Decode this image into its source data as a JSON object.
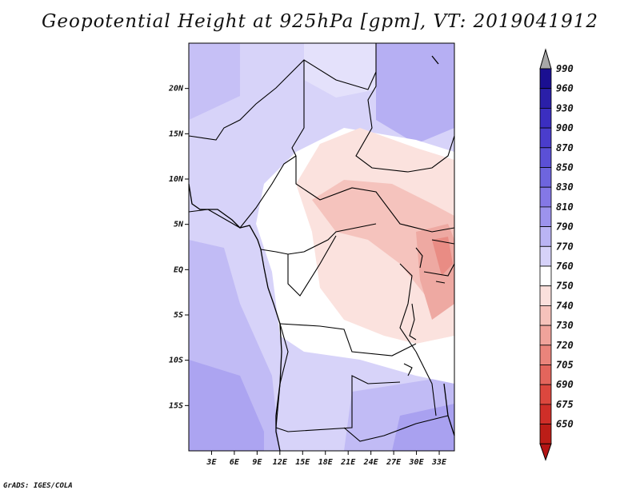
{
  "title": "Geopotential Height at 925hPa [gpm], VT: 2019041912",
  "credit": "GrADS: IGES/COLA",
  "map": {
    "lon_range": [
      0,
      35
    ],
    "lat_range": [
      -20,
      25
    ],
    "lat_ticks": [
      {
        "label": "20N",
        "lat": 20
      },
      {
        "label": "15N",
        "lat": 15
      },
      {
        "label": "10N",
        "lat": 10
      },
      {
        "label": "5N",
        "lat": 5
      },
      {
        "label": "EQ",
        "lat": 0
      },
      {
        "label": "5S",
        "lat": -5
      },
      {
        "label": "10S",
        "lat": -10
      },
      {
        "label": "15S",
        "lat": -15
      }
    ],
    "lon_ticks": [
      {
        "label": "3E",
        "lon": 3
      },
      {
        "label": "6E",
        "lon": 6
      },
      {
        "label": "9E",
        "lon": 9
      },
      {
        "label": "12E",
        "lon": 12
      },
      {
        "label": "15E",
        "lon": 15
      },
      {
        "label": "18E",
        "lon": 18
      },
      {
        "label": "21E",
        "lon": 21
      },
      {
        "label": "24E",
        "lon": 24
      },
      {
        "label": "27E",
        "lon": 27
      },
      {
        "label": "30E",
        "lon": 30
      },
      {
        "label": "33E",
        "lon": 33
      }
    ]
  },
  "colorbar": {
    "levels": [
      "990",
      "960",
      "930",
      "900",
      "870",
      "850",
      "830",
      "810",
      "790",
      "770",
      "760",
      "750",
      "740",
      "730",
      "720",
      "705",
      "690",
      "675",
      "650"
    ],
    "colors": [
      "#1a0f91",
      "#2a1fa8",
      "#3b2ec0",
      "#4a3dcc",
      "#5b50d6",
      "#6e65de",
      "#8478e6",
      "#9c93ed",
      "#bab4f4",
      "#d6d2f9",
      "#ffffff",
      "#fbe0dc",
      "#f6c2bb",
      "#f0a39b",
      "#ea847b",
      "#e3655c",
      "#dc473e",
      "#cf2e28",
      "#bc1d17"
    ],
    "top_cap_color": "#a8a8a8",
    "bottom_cap_color": "#b41414"
  }
}
